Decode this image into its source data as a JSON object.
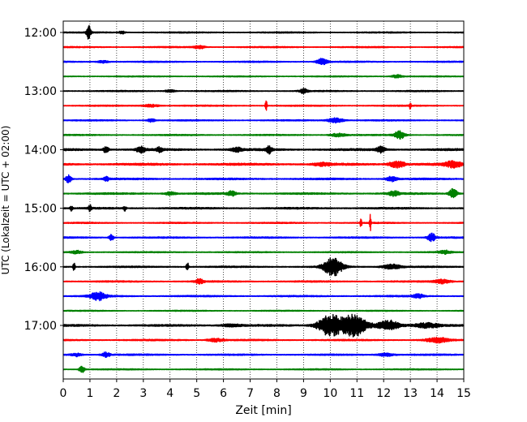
{
  "chart_data": {
    "type": "line",
    "title": "",
    "xlabel": "Zeit  [min]",
    "ylabel": "UTC (Lokalzeit = UTC + 02:00)",
    "xlim": [
      0,
      15
    ],
    "x_ticks": [
      0,
      1,
      2,
      3,
      4,
      5,
      6,
      7,
      8,
      9,
      10,
      11,
      12,
      13,
      14,
      15
    ],
    "x_tick_labels": [
      "0",
      "1",
      "2",
      "3",
      "4",
      "5",
      "6",
      "7",
      "8",
      "9",
      "10",
      "11",
      "12",
      "13",
      "14",
      "15"
    ],
    "y_ticks": [
      "12:00",
      "13:00",
      "14:00",
      "15:00",
      "16:00",
      "17:00"
    ],
    "grid": "vertical-dotted",
    "row_interval_min": 15,
    "colors": [
      "#000000",
      "#ff0000",
      "#0000ff",
      "#008000"
    ],
    "rows": [
      {
        "time": "12:00",
        "color": "#000000",
        "amp": 0.6,
        "events": [
          {
            "t": 0.95,
            "a": 9,
            "w": 0.08
          },
          {
            "t": 2.2,
            "a": 2,
            "w": 0.1
          }
        ]
      },
      {
        "time": "12:15",
        "color": "#ff0000",
        "amp": 0.6,
        "events": [
          {
            "t": 5.1,
            "a": 2,
            "w": 0.2
          }
        ]
      },
      {
        "time": "12:30",
        "color": "#0000ff",
        "amp": 0.6,
        "events": [
          {
            "t": 9.7,
            "a": 4,
            "w": 0.2
          },
          {
            "t": 1.5,
            "a": 1.5,
            "w": 0.2
          }
        ]
      },
      {
        "time": "12:45",
        "color": "#008000",
        "amp": 0.5,
        "events": [
          {
            "t": 12.5,
            "a": 2,
            "w": 0.2
          }
        ]
      },
      {
        "time": "13:00",
        "color": "#000000",
        "amp": 0.6,
        "events": [
          {
            "t": 9.0,
            "a": 3,
            "w": 0.15
          },
          {
            "t": 4.0,
            "a": 1.5,
            "w": 0.2
          }
        ]
      },
      {
        "time": "13:15",
        "color": "#ff0000",
        "amp": 0.6,
        "events": [
          {
            "t": 7.6,
            "a": 10,
            "w": 0.03
          },
          {
            "t": 13.0,
            "a": 6,
            "w": 0.03
          },
          {
            "t": 3.3,
            "a": 1.5,
            "w": 0.3
          }
        ]
      },
      {
        "time": "13:30",
        "color": "#0000ff",
        "amp": 0.6,
        "events": [
          {
            "t": 10.2,
            "a": 3,
            "w": 0.3
          },
          {
            "t": 3.3,
            "a": 2,
            "w": 0.15
          }
        ]
      },
      {
        "time": "13:45",
        "color": "#008000",
        "amp": 0.6,
        "events": [
          {
            "t": 12.6,
            "a": 5,
            "w": 0.2
          },
          {
            "t": 10.3,
            "a": 2,
            "w": 0.3
          }
        ]
      },
      {
        "time": "14:00",
        "color": "#000000",
        "amp": 1.0,
        "events": [
          {
            "t": 1.6,
            "a": 4,
            "w": 0.1
          },
          {
            "t": 2.9,
            "a": 4,
            "w": 0.15
          },
          {
            "t": 3.6,
            "a": 3,
            "w": 0.1
          },
          {
            "t": 7.7,
            "a": 5,
            "w": 0.1
          },
          {
            "t": 11.9,
            "a": 4,
            "w": 0.15
          },
          {
            "t": 6.5,
            "a": 2.5,
            "w": 0.2
          }
        ]
      },
      {
        "time": "14:15",
        "color": "#ff0000",
        "amp": 1.0,
        "events": [
          {
            "t": 12.5,
            "a": 4,
            "w": 0.3
          },
          {
            "t": 14.6,
            "a": 4,
            "w": 0.3
          },
          {
            "t": 9.7,
            "a": 2,
            "w": 0.3
          }
        ]
      },
      {
        "time": "14:30",
        "color": "#0000ff",
        "amp": 0.8,
        "events": [
          {
            "t": 0.2,
            "a": 5,
            "w": 0.1
          },
          {
            "t": 1.6,
            "a": 3,
            "w": 0.1
          },
          {
            "t": 12.3,
            "a": 3,
            "w": 0.2
          }
        ]
      },
      {
        "time": "14:45",
        "color": "#008000",
        "amp": 0.8,
        "events": [
          {
            "t": 14.6,
            "a": 6,
            "w": 0.15
          },
          {
            "t": 6.3,
            "a": 3,
            "w": 0.15
          },
          {
            "t": 12.4,
            "a": 3,
            "w": 0.2
          },
          {
            "t": 4.0,
            "a": 2,
            "w": 0.2
          }
        ]
      },
      {
        "time": "15:00",
        "color": "#000000",
        "amp": 0.8,
        "events": [
          {
            "t": 0.3,
            "a": 3,
            "w": 0.05
          },
          {
            "t": 1.0,
            "a": 4,
            "w": 0.05
          },
          {
            "t": 2.3,
            "a": 3,
            "w": 0.05
          }
        ]
      },
      {
        "time": "15:15",
        "color": "#ff0000",
        "amp": 0.6,
        "events": [
          {
            "t": 11.15,
            "a": 7,
            "w": 0.03
          },
          {
            "t": 11.5,
            "a": 10,
            "w": 0.03
          }
        ]
      },
      {
        "time": "15:30",
        "color": "#0000ff",
        "amp": 0.7,
        "events": [
          {
            "t": 1.8,
            "a": 4,
            "w": 0.08
          },
          {
            "t": 13.8,
            "a": 5,
            "w": 0.15
          }
        ]
      },
      {
        "time": "15:45",
        "color": "#008000",
        "amp": 0.6,
        "events": [
          {
            "t": 0.5,
            "a": 2,
            "w": 0.2
          },
          {
            "t": 14.3,
            "a": 2,
            "w": 0.2
          }
        ]
      },
      {
        "time": "16:00",
        "color": "#000000",
        "amp": 0.7,
        "events": [
          {
            "t": 10.1,
            "a": 11,
            "w": 0.35
          },
          {
            "t": 12.3,
            "a": 3,
            "w": 0.35
          },
          {
            "t": 0.4,
            "a": 6,
            "w": 0.04
          },
          {
            "t": 4.65,
            "a": 7,
            "w": 0.04
          }
        ]
      },
      {
        "time": "16:15",
        "color": "#ff0000",
        "amp": 0.7,
        "events": [
          {
            "t": 5.1,
            "a": 3,
            "w": 0.15
          },
          {
            "t": 14.2,
            "a": 2.5,
            "w": 0.3
          }
        ]
      },
      {
        "time": "16:30",
        "color": "#0000ff",
        "amp": 0.7,
        "events": [
          {
            "t": 1.3,
            "a": 5,
            "w": 0.3
          },
          {
            "t": 13.3,
            "a": 2.5,
            "w": 0.2
          }
        ]
      },
      {
        "time": "16:45",
        "color": "#008000",
        "amp": 0.5,
        "events": []
      },
      {
        "time": "17:00",
        "color": "#000000",
        "amp": 0.9,
        "events": [
          {
            "t": 10.0,
            "a": 13,
            "w": 0.45
          },
          {
            "t": 10.9,
            "a": 13,
            "w": 0.45
          },
          {
            "t": 12.2,
            "a": 6,
            "w": 0.4
          },
          {
            "t": 13.6,
            "a": 3,
            "w": 0.5
          },
          {
            "t": 6.3,
            "a": 1.5,
            "w": 0.4
          }
        ]
      },
      {
        "time": "17:15",
        "color": "#ff0000",
        "amp": 0.7,
        "events": [
          {
            "t": 14.0,
            "a": 3,
            "w": 0.4
          },
          {
            "t": 5.7,
            "a": 2,
            "w": 0.3
          }
        ]
      },
      {
        "time": "17:30",
        "color": "#0000ff",
        "amp": 0.7,
        "events": [
          {
            "t": 1.6,
            "a": 3,
            "w": 0.15
          },
          {
            "t": 0.5,
            "a": 2,
            "w": 0.2
          },
          {
            "t": 12.1,
            "a": 2,
            "w": 0.3
          }
        ]
      },
      {
        "time": "17:45",
        "color": "#008000",
        "amp": 0.6,
        "events": [
          {
            "t": 0.7,
            "a": 4,
            "w": 0.1
          }
        ]
      }
    ]
  }
}
